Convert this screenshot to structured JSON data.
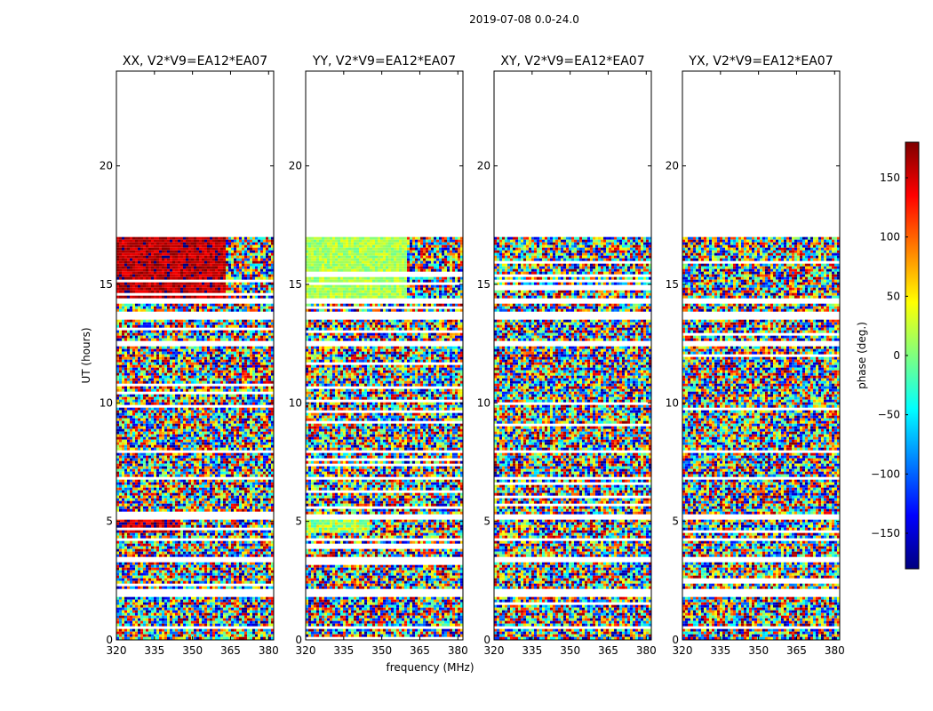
{
  "figure": {
    "suptitle": "2019-07-08 0.0-24.0",
    "ylabel": "UT (hours)",
    "xlabel": "frequency (MHz)"
  },
  "colorbar": {
    "label": "phase (deg.)",
    "range": [
      -180,
      180
    ],
    "ticks": [
      150,
      100,
      50,
      0,
      -50,
      -100,
      -150
    ],
    "tick_labels": [
      "150",
      "100",
      "50",
      "0",
      "−50",
      "−100",
      "−150"
    ],
    "colormap": "jet",
    "colors": [
      "#00007f",
      "#0000ff",
      "#007fff",
      "#00ffff",
      "#7fff7f",
      "#ffff00",
      "#ff7f00",
      "#ff0000",
      "#7f0000"
    ]
  },
  "chart_data": {
    "type": "heatmap",
    "xlim": [
      320,
      382
    ],
    "ylim": [
      0,
      24
    ],
    "x_ticks": [
      320,
      335,
      350,
      365,
      380
    ],
    "y_ticks": [
      0,
      5,
      10,
      15,
      20
    ],
    "y_tick_labels": [
      "0",
      "5",
      "10",
      "15",
      "20"
    ],
    "data_extent_hours": [
      0,
      17
    ],
    "panels": [
      {
        "title": "XX, V2*V9=EA12*EA07",
        "coherent_phase_15_17h": 160,
        "coherent_band_MHz": [
          320,
          363
        ]
      },
      {
        "title": "YY, V2*V9=EA12*EA07",
        "coherent_phase_15_17h": 15,
        "coherent_band_MHz": [
          320,
          360
        ]
      },
      {
        "title": "XY, V2*V9=EA12*EA07"
      },
      {
        "title": "YX, V2*V9=EA12*EA07"
      }
    ],
    "data_gaps_hours": [
      [
        0.5,
        0.6
      ],
      [
        1.8,
        2.1
      ],
      [
        3.3,
        3.5
      ],
      [
        4.2,
        4.3
      ],
      [
        5.1,
        5.3
      ],
      [
        6.8,
        6.9
      ],
      [
        7.9,
        8.0
      ],
      [
        12.4,
        12.6
      ],
      [
        13.5,
        13.8
      ],
      [
        14.2,
        14.4
      ]
    ]
  }
}
